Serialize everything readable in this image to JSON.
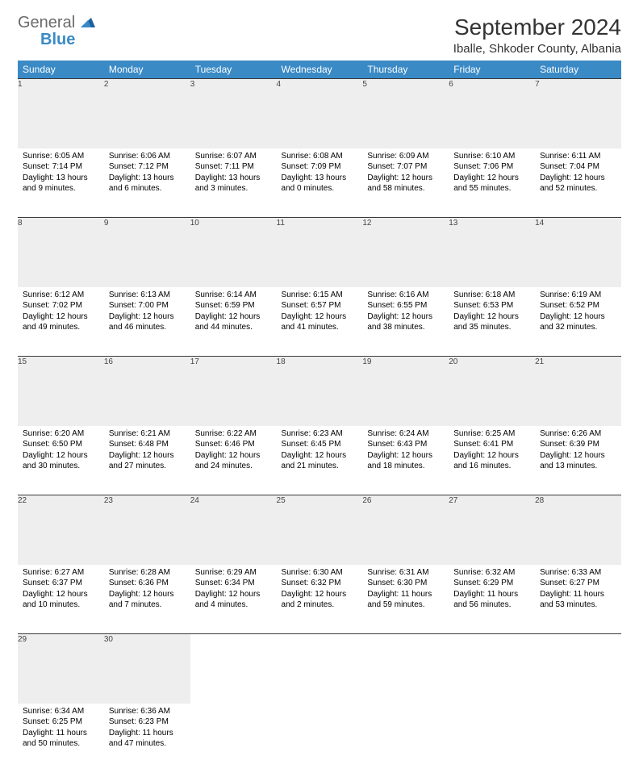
{
  "logo": {
    "word1": "General",
    "word2": "Blue"
  },
  "header": {
    "title": "September 2024",
    "location": "Iballe, Shkoder County, Albania"
  },
  "colors": {
    "header_bg": "#3a8ac6",
    "daynum_bg": "#eeeeee",
    "border": "#3a3a3a",
    "text": "#000000"
  },
  "weekdays": [
    "Sunday",
    "Monday",
    "Tuesday",
    "Wednesday",
    "Thursday",
    "Friday",
    "Saturday"
  ],
  "weeks": [
    [
      {
        "n": "1",
        "sr": "Sunrise: 6:05 AM",
        "ss": "Sunset: 7:14 PM",
        "dl": "Daylight: 13 hours and 9 minutes."
      },
      {
        "n": "2",
        "sr": "Sunrise: 6:06 AM",
        "ss": "Sunset: 7:12 PM",
        "dl": "Daylight: 13 hours and 6 minutes."
      },
      {
        "n": "3",
        "sr": "Sunrise: 6:07 AM",
        "ss": "Sunset: 7:11 PM",
        "dl": "Daylight: 13 hours and 3 minutes."
      },
      {
        "n": "4",
        "sr": "Sunrise: 6:08 AM",
        "ss": "Sunset: 7:09 PM",
        "dl": "Daylight: 13 hours and 0 minutes."
      },
      {
        "n": "5",
        "sr": "Sunrise: 6:09 AM",
        "ss": "Sunset: 7:07 PM",
        "dl": "Daylight: 12 hours and 58 minutes."
      },
      {
        "n": "6",
        "sr": "Sunrise: 6:10 AM",
        "ss": "Sunset: 7:06 PM",
        "dl": "Daylight: 12 hours and 55 minutes."
      },
      {
        "n": "7",
        "sr": "Sunrise: 6:11 AM",
        "ss": "Sunset: 7:04 PM",
        "dl": "Daylight: 12 hours and 52 minutes."
      }
    ],
    [
      {
        "n": "8",
        "sr": "Sunrise: 6:12 AM",
        "ss": "Sunset: 7:02 PM",
        "dl": "Daylight: 12 hours and 49 minutes."
      },
      {
        "n": "9",
        "sr": "Sunrise: 6:13 AM",
        "ss": "Sunset: 7:00 PM",
        "dl": "Daylight: 12 hours and 46 minutes."
      },
      {
        "n": "10",
        "sr": "Sunrise: 6:14 AM",
        "ss": "Sunset: 6:59 PM",
        "dl": "Daylight: 12 hours and 44 minutes."
      },
      {
        "n": "11",
        "sr": "Sunrise: 6:15 AM",
        "ss": "Sunset: 6:57 PM",
        "dl": "Daylight: 12 hours and 41 minutes."
      },
      {
        "n": "12",
        "sr": "Sunrise: 6:16 AM",
        "ss": "Sunset: 6:55 PM",
        "dl": "Daylight: 12 hours and 38 minutes."
      },
      {
        "n": "13",
        "sr": "Sunrise: 6:18 AM",
        "ss": "Sunset: 6:53 PM",
        "dl": "Daylight: 12 hours and 35 minutes."
      },
      {
        "n": "14",
        "sr": "Sunrise: 6:19 AM",
        "ss": "Sunset: 6:52 PM",
        "dl": "Daylight: 12 hours and 32 minutes."
      }
    ],
    [
      {
        "n": "15",
        "sr": "Sunrise: 6:20 AM",
        "ss": "Sunset: 6:50 PM",
        "dl": "Daylight: 12 hours and 30 minutes."
      },
      {
        "n": "16",
        "sr": "Sunrise: 6:21 AM",
        "ss": "Sunset: 6:48 PM",
        "dl": "Daylight: 12 hours and 27 minutes."
      },
      {
        "n": "17",
        "sr": "Sunrise: 6:22 AM",
        "ss": "Sunset: 6:46 PM",
        "dl": "Daylight: 12 hours and 24 minutes."
      },
      {
        "n": "18",
        "sr": "Sunrise: 6:23 AM",
        "ss": "Sunset: 6:45 PM",
        "dl": "Daylight: 12 hours and 21 minutes."
      },
      {
        "n": "19",
        "sr": "Sunrise: 6:24 AM",
        "ss": "Sunset: 6:43 PM",
        "dl": "Daylight: 12 hours and 18 minutes."
      },
      {
        "n": "20",
        "sr": "Sunrise: 6:25 AM",
        "ss": "Sunset: 6:41 PM",
        "dl": "Daylight: 12 hours and 16 minutes."
      },
      {
        "n": "21",
        "sr": "Sunrise: 6:26 AM",
        "ss": "Sunset: 6:39 PM",
        "dl": "Daylight: 12 hours and 13 minutes."
      }
    ],
    [
      {
        "n": "22",
        "sr": "Sunrise: 6:27 AM",
        "ss": "Sunset: 6:37 PM",
        "dl": "Daylight: 12 hours and 10 minutes."
      },
      {
        "n": "23",
        "sr": "Sunrise: 6:28 AM",
        "ss": "Sunset: 6:36 PM",
        "dl": "Daylight: 12 hours and 7 minutes."
      },
      {
        "n": "24",
        "sr": "Sunrise: 6:29 AM",
        "ss": "Sunset: 6:34 PM",
        "dl": "Daylight: 12 hours and 4 minutes."
      },
      {
        "n": "25",
        "sr": "Sunrise: 6:30 AM",
        "ss": "Sunset: 6:32 PM",
        "dl": "Daylight: 12 hours and 2 minutes."
      },
      {
        "n": "26",
        "sr": "Sunrise: 6:31 AM",
        "ss": "Sunset: 6:30 PM",
        "dl": "Daylight: 11 hours and 59 minutes."
      },
      {
        "n": "27",
        "sr": "Sunrise: 6:32 AM",
        "ss": "Sunset: 6:29 PM",
        "dl": "Daylight: 11 hours and 56 minutes."
      },
      {
        "n": "28",
        "sr": "Sunrise: 6:33 AM",
        "ss": "Sunset: 6:27 PM",
        "dl": "Daylight: 11 hours and 53 minutes."
      }
    ],
    [
      {
        "n": "29",
        "sr": "Sunrise: 6:34 AM",
        "ss": "Sunset: 6:25 PM",
        "dl": "Daylight: 11 hours and 50 minutes."
      },
      {
        "n": "30",
        "sr": "Sunrise: 6:36 AM",
        "ss": "Sunset: 6:23 PM",
        "dl": "Daylight: 11 hours and 47 minutes."
      },
      null,
      null,
      null,
      null,
      null
    ]
  ]
}
